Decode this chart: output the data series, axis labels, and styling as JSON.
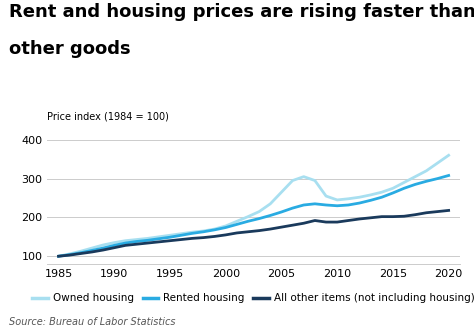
{
  "title_line1": "Rent and housing prices are rising faster than",
  "title_line2": "other goods",
  "ylabel": "Price index (1984 = 100)",
  "source": "Source: Bureau of Labor Statistics",
  "xlim": [
    1984,
    2021
  ],
  "ylim": [
    80,
    420
  ],
  "yticks": [
    100,
    200,
    300,
    400
  ],
  "xticks": [
    1985,
    1990,
    1995,
    2000,
    2005,
    2010,
    2015,
    2020
  ],
  "owned_housing": {
    "years": [
      1985,
      1986,
      1987,
      1988,
      1989,
      1990,
      1991,
      1992,
      1993,
      1994,
      1995,
      1996,
      1997,
      1998,
      1999,
      2000,
      2001,
      2002,
      2003,
      2004,
      2005,
      2006,
      2007,
      2008,
      2009,
      2010,
      2011,
      2012,
      2013,
      2014,
      2015,
      2016,
      2017,
      2018,
      2019,
      2020
    ],
    "values": [
      100,
      106,
      113,
      121,
      129,
      135,
      140,
      143,
      146,
      150,
      154,
      158,
      162,
      165,
      170,
      178,
      190,
      202,
      215,
      235,
      265,
      295,
      305,
      295,
      255,
      245,
      248,
      252,
      258,
      265,
      275,
      290,
      305,
      320,
      340,
      360
    ],
    "color": "#a8dff0",
    "linewidth": 2.0,
    "label": "Owned housing"
  },
  "rented_housing": {
    "years": [
      1985,
      1986,
      1987,
      1988,
      1989,
      1990,
      1991,
      1992,
      1993,
      1994,
      1995,
      1996,
      1997,
      1998,
      1999,
      2000,
      2001,
      2002,
      2003,
      2004,
      2005,
      2006,
      2007,
      2008,
      2009,
      2010,
      2011,
      2012,
      2013,
      2014,
      2015,
      2016,
      2017,
      2018,
      2019,
      2020
    ],
    "values": [
      100,
      104,
      109,
      115,
      121,
      128,
      134,
      138,
      141,
      145,
      149,
      154,
      159,
      163,
      168,
      174,
      182,
      190,
      197,
      205,
      214,
      224,
      232,
      235,
      232,
      230,
      232,
      237,
      244,
      252,
      263,
      275,
      285,
      293,
      300,
      308
    ],
    "color": "#29abe2",
    "linewidth": 2.0,
    "label": "Rented housing"
  },
  "all_other": {
    "years": [
      1985,
      1986,
      1987,
      1988,
      1989,
      1990,
      1991,
      1992,
      1993,
      1994,
      1995,
      1996,
      1997,
      1998,
      1999,
      2000,
      2001,
      2002,
      2003,
      2004,
      2005,
      2006,
      2007,
      2008,
      2009,
      2010,
      2011,
      2012,
      2013,
      2014,
      2015,
      2016,
      2017,
      2018,
      2019,
      2020
    ],
    "values": [
      100,
      103,
      107,
      111,
      116,
      122,
      128,
      131,
      134,
      137,
      140,
      143,
      146,
      148,
      151,
      155,
      160,
      163,
      166,
      170,
      175,
      180,
      185,
      192,
      188,
      188,
      192,
      196,
      199,
      202,
      202,
      203,
      207,
      212,
      215,
      218
    ],
    "color": "#1a3a5c",
    "linewidth": 2.0,
    "label": "All other items (not including housing)"
  },
  "background_color": "#ffffff",
  "grid_color": "#cccccc",
  "title_fontsize": 13,
  "axis_label_fontsize": 7,
  "tick_fontsize": 8,
  "legend_fontsize": 7.5,
  "source_fontsize": 7
}
